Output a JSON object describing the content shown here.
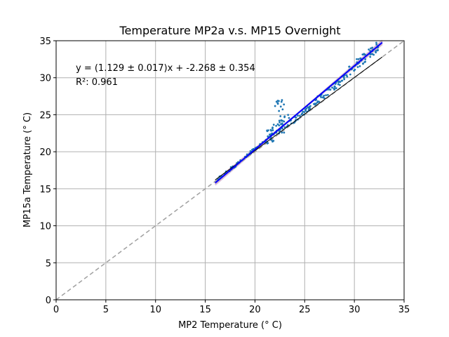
{
  "chart_data": {
    "type": "scatter",
    "title": "Temperature MP2a v.s. MP15 Overnight",
    "xlabel": "MP2 Temperature (° C)",
    "ylabel": "MP15a Temperature (° C)",
    "xlim": [
      0,
      35
    ],
    "ylim": [
      0,
      35
    ],
    "xticks": [
      "0",
      "5",
      "10",
      "15",
      "20",
      "25",
      "30",
      "35"
    ],
    "yticks": [
      "0",
      "5",
      "10",
      "15",
      "20",
      "25",
      "30",
      "35"
    ],
    "grid": true,
    "annotations": [
      "y = (1.129 ± 0.017)x + -2.268 ± 0.354",
      "R²: 0.961"
    ],
    "fit": {
      "slope": 1.129,
      "intercept": -2.268,
      "x": [
        16,
        32.8
      ]
    },
    "reference_line": {
      "x": [
        0,
        35
      ],
      "y": [
        0,
        35
      ]
    },
    "black_line": {
      "x": [
        16,
        32.8
      ],
      "y": [
        16.2,
        32.8
      ]
    },
    "scatter_segments": [
      {
        "x0": 16.0,
        "x1": 18.5,
        "n": 22,
        "slope": 1.05,
        "intercept": -0.8,
        "noise": 0.25
      },
      {
        "x0": 18.5,
        "x1": 21.0,
        "n": 25,
        "slope": 1.1,
        "intercept": -1.6,
        "noise": 0.2
      },
      {
        "x0": 21.0,
        "x1": 23.5,
        "n": 60,
        "slope": 1.0,
        "intercept": 0.7,
        "noise": 1.1
      },
      {
        "x0": 22.0,
        "x1": 23.0,
        "n": 14,
        "slope": 0.0,
        "intercept": 25.8,
        "noise": 1.2
      },
      {
        "x0": 23.5,
        "x1": 26.0,
        "n": 30,
        "slope": 1.05,
        "intercept": -0.9,
        "noise": 0.35
      },
      {
        "x0": 26.0,
        "x1": 29.0,
        "n": 45,
        "slope": 1.08,
        "intercept": -1.4,
        "noise": 0.5
      },
      {
        "x0": 29.0,
        "x1": 32.5,
        "n": 55,
        "slope": 1.12,
        "intercept": -2.0,
        "noise": 0.7
      }
    ],
    "colors": {
      "points": "#1f77b4",
      "fit": "#0000ff",
      "band": "#c8a2c8",
      "reference": "#a0a0a0",
      "black_line": "#000000",
      "grid": "#b0b0b0"
    }
  }
}
